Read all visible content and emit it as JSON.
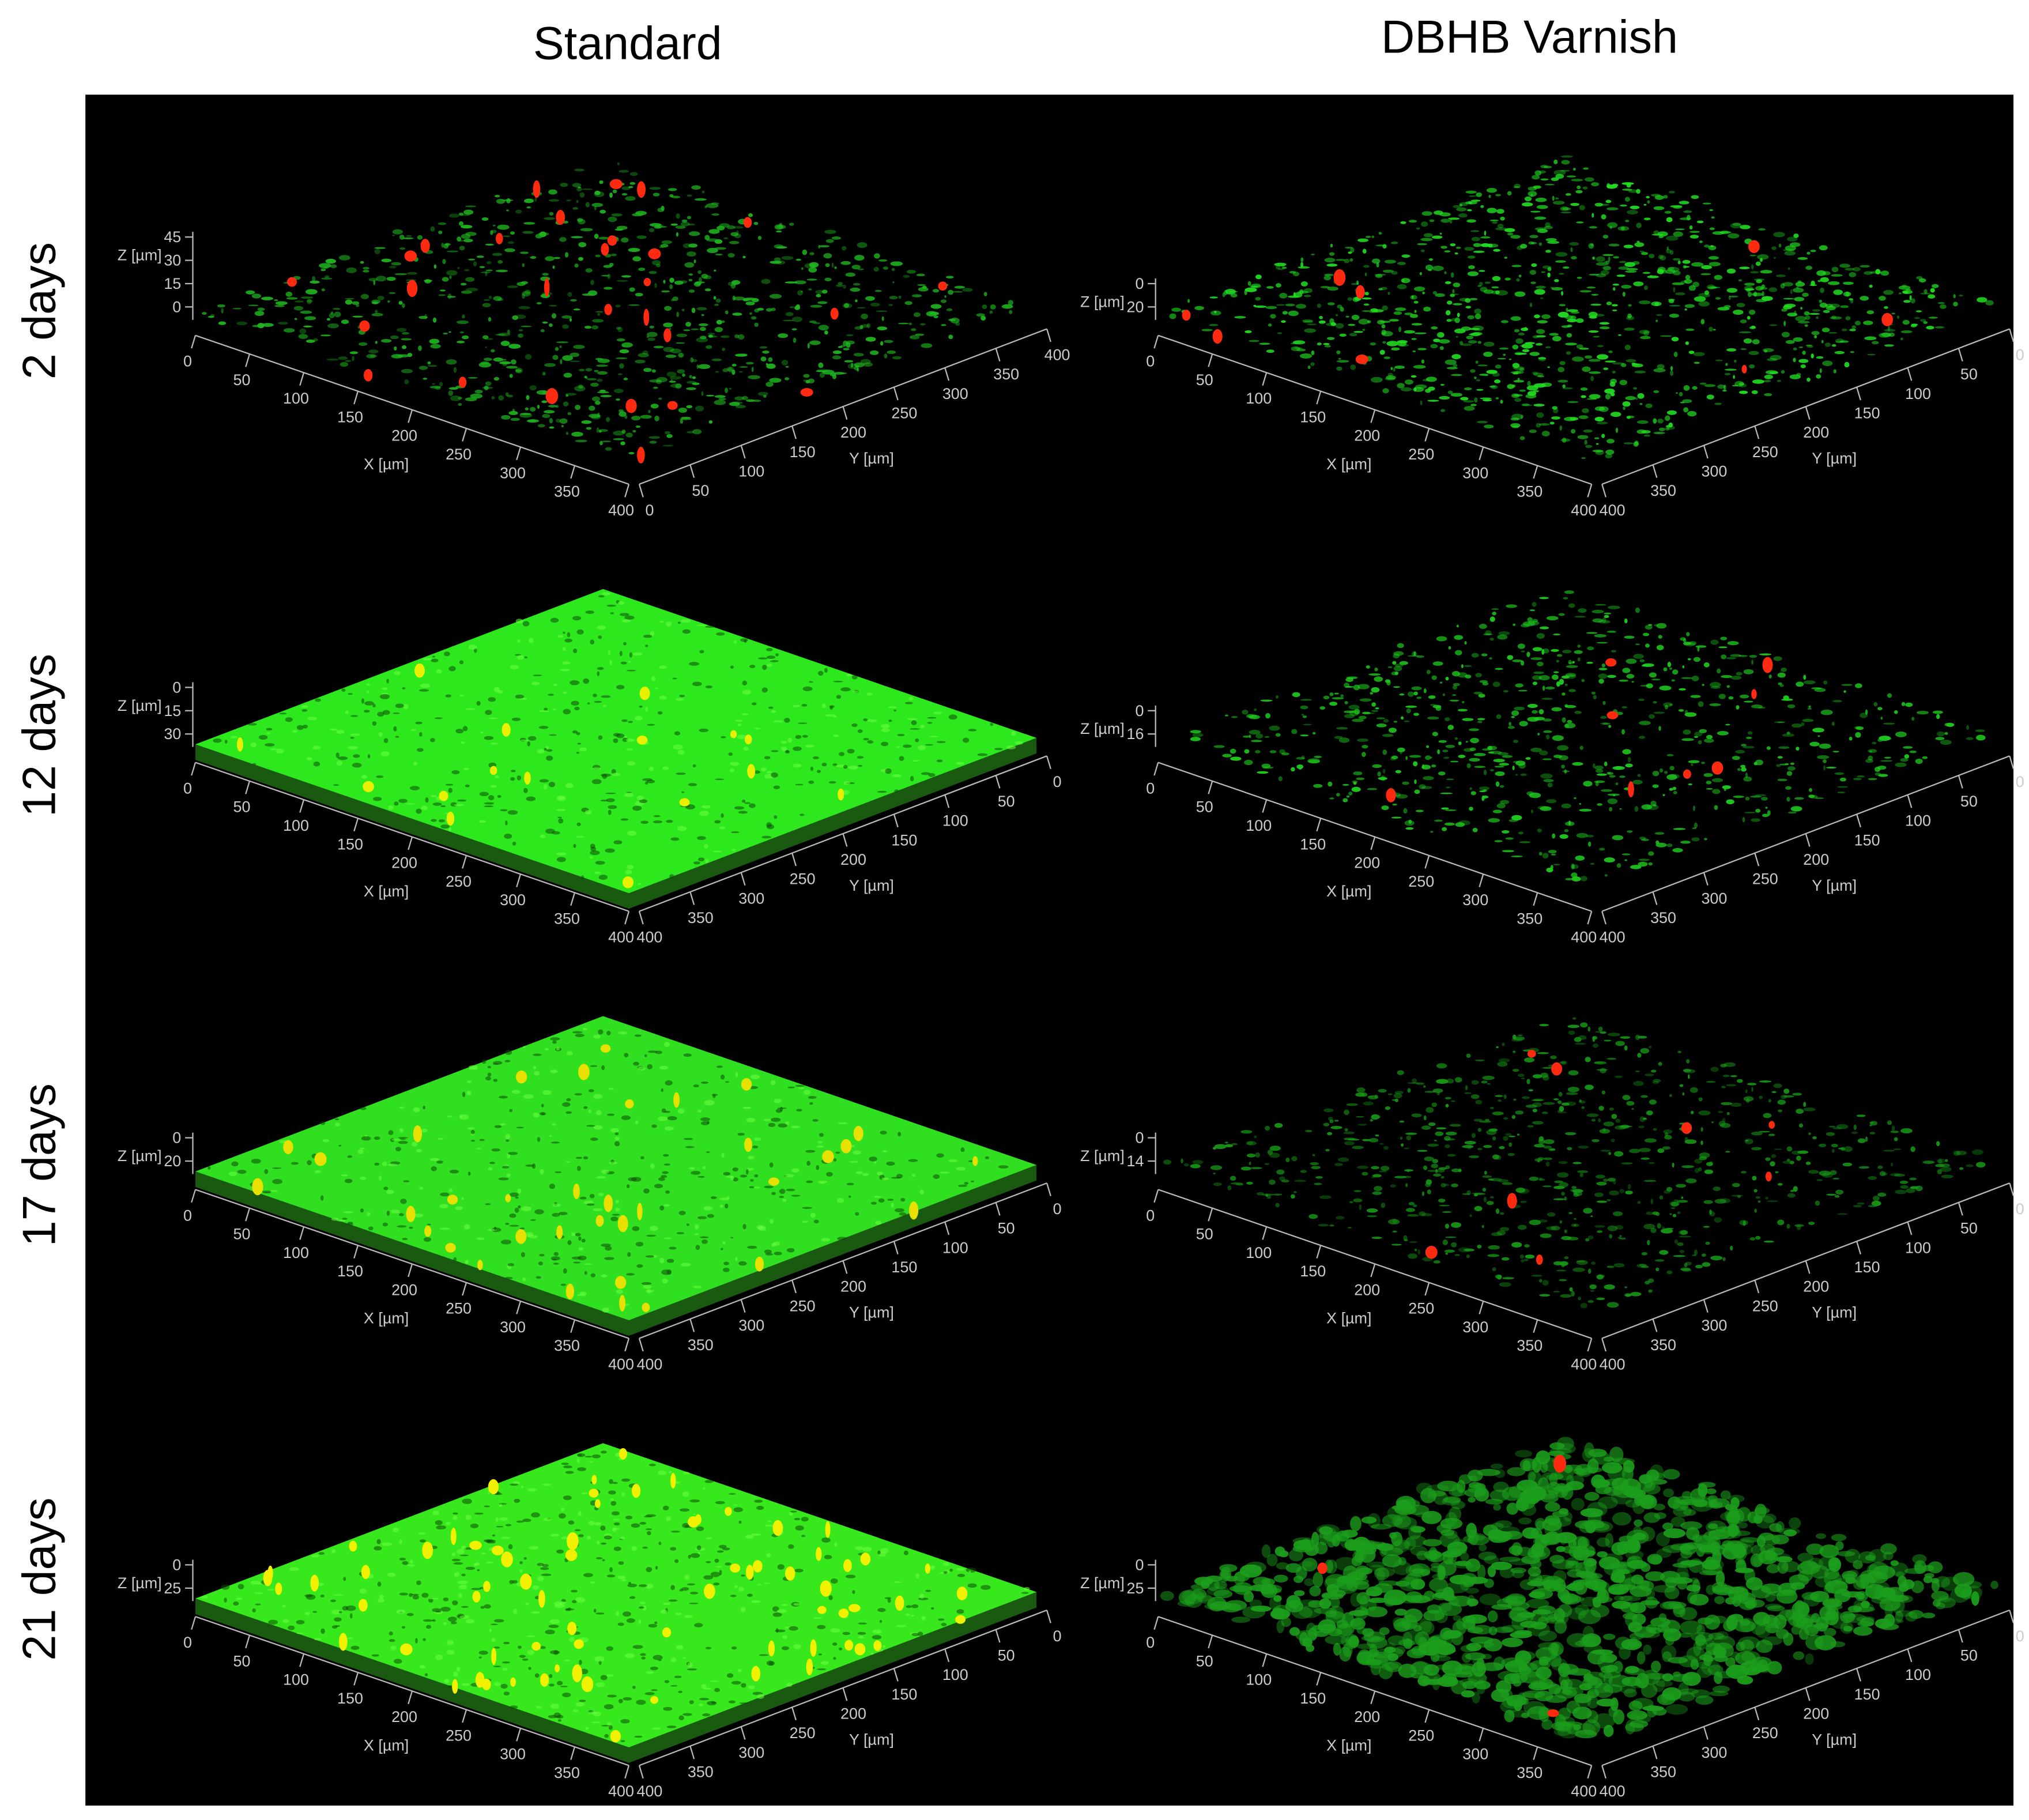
{
  "columns": [
    "Standard",
    "DBHB Varnish"
  ],
  "rows": [
    "2 days",
    "12 days",
    "17 days",
    "21 days"
  ],
  "panels": [
    {
      "x_label": "X [µm]",
      "y_label": "Y [µm]",
      "z_label": "Z [µm]",
      "z_ticks": [
        "45",
        "30",
        "15",
        "0"
      ],
      "x_ticks": [
        "0",
        "50",
        "100",
        "150",
        "200",
        "250",
        "300",
        "350",
        "400"
      ],
      "y_ticks": [
        "0",
        "50",
        "100",
        "150",
        "200",
        "250",
        "300",
        "350",
        "400"
      ]
    },
    {
      "x_label": "X [µm]",
      "y_label": "Y [µm]",
      "z_label": "Z [µm]",
      "z_ticks": [
        "0",
        "20"
      ],
      "x_ticks": [
        "0",
        "50",
        "100",
        "150",
        "200",
        "250",
        "300",
        "350",
        "400"
      ],
      "y_ticks": [
        "400",
        "350",
        "300",
        "250",
        "200",
        "150",
        "100",
        "50",
        "0"
      ]
    },
    {
      "x_label": "X [µm]",
      "y_label": "Y [µm]",
      "z_label": "Z [µm]",
      "z_ticks": [
        "0",
        "15",
        "30"
      ],
      "x_ticks": [
        "0",
        "50",
        "100",
        "150",
        "200",
        "250",
        "300",
        "350",
        "400"
      ],
      "y_ticks": [
        "400",
        "350",
        "300",
        "250",
        "200",
        "150",
        "100",
        "50",
        "0"
      ]
    },
    {
      "x_label": "X [µm]",
      "y_label": "Y [µm]",
      "z_label": "Z [µm]",
      "z_ticks": [
        "0",
        "16"
      ],
      "x_ticks": [
        "0",
        "50",
        "100",
        "150",
        "200",
        "250",
        "300",
        "350",
        "400"
      ],
      "y_ticks": [
        "400",
        "350",
        "300",
        "250",
        "200",
        "150",
        "100",
        "50",
        "0"
      ]
    },
    {
      "x_label": "X [µm]",
      "y_label": "Y [µm]",
      "z_label": "Z [µm]",
      "z_ticks": [
        "0",
        "20"
      ],
      "x_ticks": [
        "0",
        "50",
        "100",
        "150",
        "200",
        "250",
        "300",
        "350",
        "400"
      ],
      "y_ticks": [
        "400",
        "350",
        "300",
        "250",
        "200",
        "150",
        "100",
        "50",
        "0"
      ]
    },
    {
      "x_label": "X [µm]",
      "y_label": "Y [µm]",
      "z_label": "Z [µm]",
      "z_ticks": [
        "0",
        "14"
      ],
      "x_ticks": [
        "0",
        "50",
        "100",
        "150",
        "200",
        "250",
        "300",
        "350",
        "400"
      ],
      "y_ticks": [
        "400",
        "350",
        "300",
        "250",
        "200",
        "150",
        "100",
        "50",
        "0"
      ]
    },
    {
      "x_label": "X [µm]",
      "y_label": "Y [µm]",
      "z_label": "Z [µm]",
      "z_ticks": [
        "0",
        "25"
      ],
      "x_ticks": [
        "0",
        "50",
        "100",
        "150",
        "200",
        "250",
        "300",
        "350",
        "400"
      ],
      "y_ticks": [
        "400",
        "350",
        "300",
        "250",
        "200",
        "150",
        "100",
        "50",
        "0"
      ]
    },
    {
      "x_label": "X [µm]",
      "y_label": "Y [µm]",
      "z_label": "Z [µm]",
      "z_ticks": [
        "0",
        "25"
      ],
      "x_ticks": [
        "0",
        "50",
        "100",
        "150",
        "200",
        "250",
        "300",
        "350",
        "400"
      ],
      "y_ticks": [
        "400",
        "350",
        "300",
        "250",
        "200",
        "150",
        "100",
        "50",
        "0"
      ]
    }
  ]
}
